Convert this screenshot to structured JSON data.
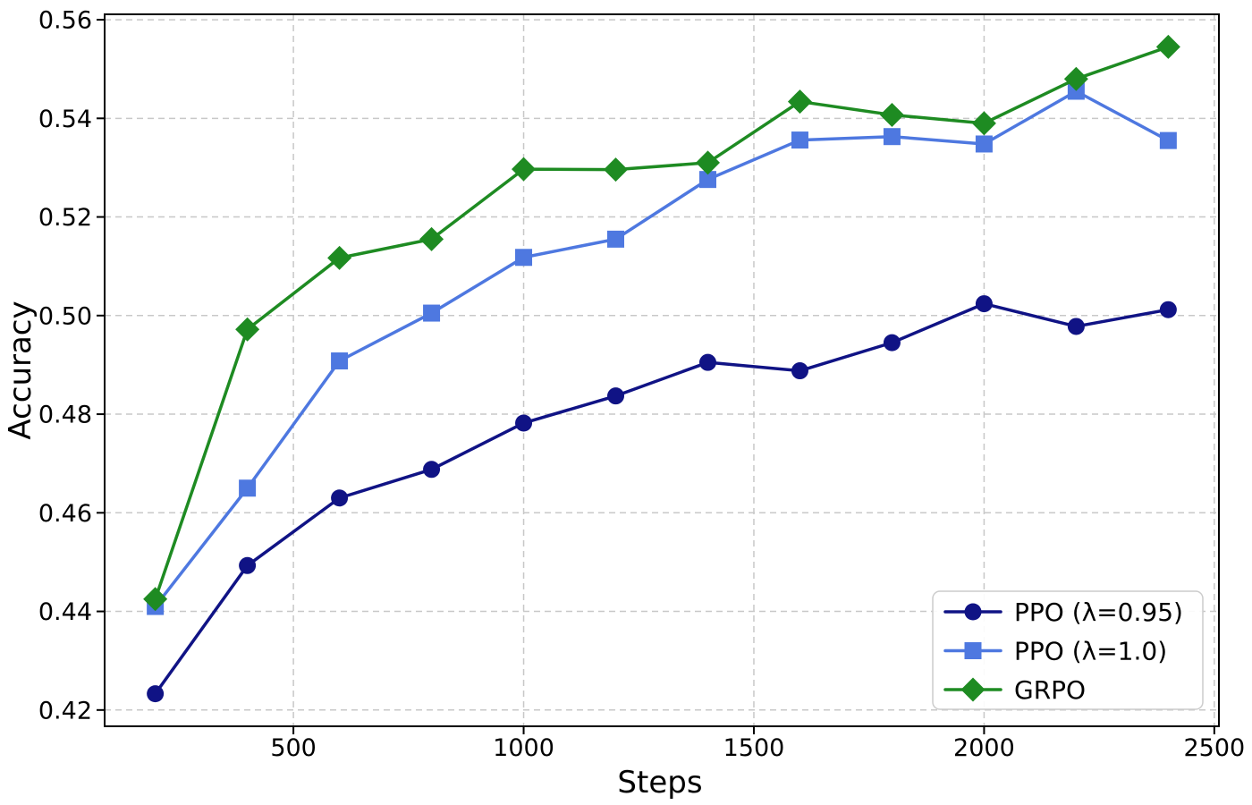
{
  "chart_data": {
    "type": "line",
    "title": "",
    "xlabel": "Steps",
    "ylabel": "Accuracy",
    "x": [
      200,
      400,
      600,
      800,
      1000,
      1200,
      1400,
      1600,
      1800,
      2000,
      2200,
      2400
    ],
    "series": [
      {
        "name": "PPO (λ=0.95)",
        "marker": "circle",
        "color": "#101385",
        "values": [
          0.4233,
          0.4493,
          0.463,
          0.4688,
          0.4782,
          0.4837,
          0.4905,
          0.4888,
          0.4945,
          0.5024,
          0.4978,
          0.5012
        ]
      },
      {
        "name": "PPO (λ=1.0)",
        "marker": "square",
        "color": "#4e78e0",
        "values": [
          0.441,
          0.465,
          0.4908,
          0.5005,
          0.5118,
          0.5155,
          0.5276,
          0.5356,
          0.5363,
          0.5348,
          0.5455,
          0.5355
        ]
      },
      {
        "name": "GRPO",
        "marker": "diamond",
        "color": "#1e8b22",
        "values": [
          0.4425,
          0.4972,
          0.5117,
          0.5155,
          0.5297,
          0.5296,
          0.531,
          0.5434,
          0.5407,
          0.539,
          0.548,
          0.5545
        ]
      }
    ],
    "xlim": [
      90,
      2510
    ],
    "ylim": [
      0.4167,
      0.5611
    ],
    "xticks": [
      500,
      1000,
      1500,
      2000,
      2500
    ],
    "yticks": [
      0.42,
      0.44,
      0.46,
      0.48,
      0.5,
      0.52,
      0.54,
      0.56
    ],
    "ytick_format_decimals": 2,
    "grid": true,
    "grid_style": "dashed",
    "legend_position": "lower right"
  },
  "colors": {
    "background": "#ffffff",
    "grid": "#c8c8c8",
    "spine": "#000000",
    "tick": "#000000",
    "legend_border": "#cccccc",
    "legend_background": "#ffffff"
  }
}
